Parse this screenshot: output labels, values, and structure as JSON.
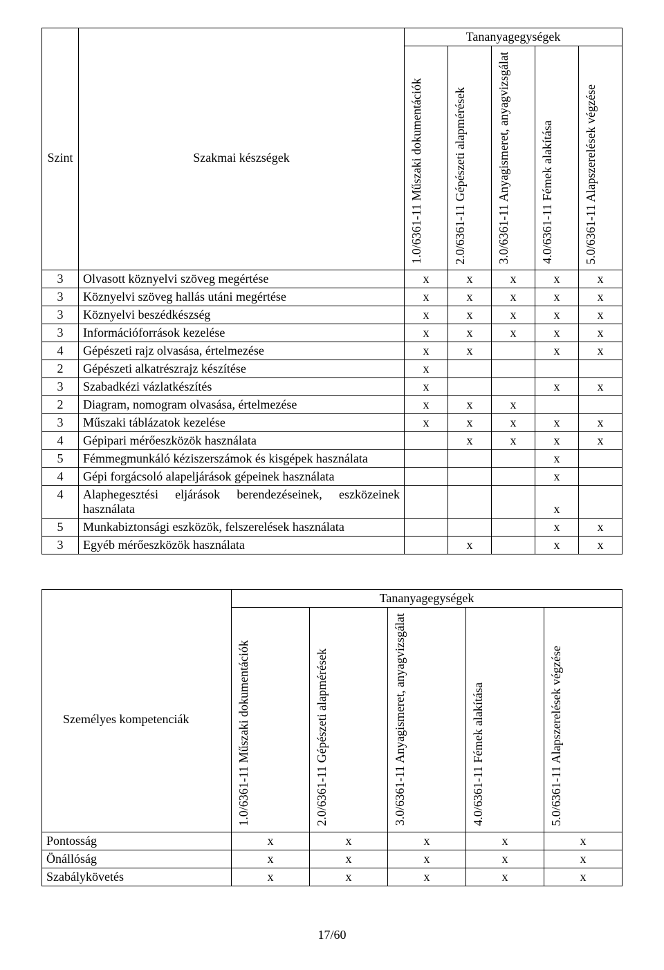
{
  "table1": {
    "group_header": "Tananyagegységek",
    "left_header_1": "Szint",
    "left_header_2": "Szakmai készségek",
    "cols": [
      "1.0/6361-11 Műszaki dokumentációk",
      "2.0/6361-11 Gépészeti alapmérések",
      "3.0/6361-11 Anyagismeret, anyagvizsgálat",
      "4.0/6361-11 Fémek alakítása",
      "5.0/6361-11 Alapszerelések végzése"
    ],
    "rows": [
      {
        "szint": "3",
        "desc": "Olvasott köznyelvi szöveg megértése",
        "m": [
          "x",
          "x",
          "x",
          "x",
          "x"
        ]
      },
      {
        "szint": "3",
        "desc": "Köznyelvi szöveg hallás utáni megértése",
        "m": [
          "x",
          "x",
          "x",
          "x",
          "x"
        ]
      },
      {
        "szint": "3",
        "desc": "Köznyelvi beszédkészség",
        "m": [
          "x",
          "x",
          "x",
          "x",
          "x"
        ]
      },
      {
        "szint": "3",
        "desc": "Információforrások kezelése",
        "m": [
          "x",
          "x",
          "x",
          "x",
          "x"
        ]
      },
      {
        "szint": "4",
        "desc": "Gépészeti rajz olvasása, értelmezése",
        "m": [
          "x",
          "x",
          "",
          "x",
          "x"
        ]
      },
      {
        "szint": "2",
        "desc": "Gépészeti alkatrészrajz készítése",
        "m": [
          "x",
          "",
          "",
          "",
          ""
        ]
      },
      {
        "szint": "3",
        "desc": "Szabadkézi vázlatkészítés",
        "m": [
          "x",
          "",
          "",
          "x",
          "x"
        ]
      },
      {
        "szint": "2",
        "desc": "Diagram, nomogram olvasása, értelmezése",
        "m": [
          "x",
          "x",
          "x",
          "",
          ""
        ]
      },
      {
        "szint": "3",
        "desc": "Műszaki táblázatok kezelése",
        "m": [
          "x",
          "x",
          "x",
          "x",
          "x"
        ]
      },
      {
        "szint": "4",
        "desc": "Gépipari mérőeszközök használata",
        "m": [
          "",
          "x",
          "x",
          "x",
          "x"
        ]
      },
      {
        "szint": "5",
        "desc": "Fémmegmunkáló kéziszerszámok és kisgépek használata",
        "m": [
          "",
          "",
          "",
          "x",
          ""
        ],
        "justify": true
      },
      {
        "szint": "4",
        "desc": "Gépi forgácsoló alapeljárások gépeinek használata",
        "m": [
          "",
          "",
          "",
          "x",
          ""
        ]
      },
      {
        "szint": "4",
        "desc": "Alaphegesztési eljárások berendezéseinek, eszközeinek használata",
        "m": [
          "",
          "",
          "",
          "x",
          ""
        ],
        "justify": true
      },
      {
        "szint": "5",
        "desc": "Munkabiztonsági eszközök, felszerelések használata",
        "m": [
          "",
          "",
          "",
          "x",
          "x"
        ]
      },
      {
        "szint": "3",
        "desc": "Egyéb mérőeszközök használata",
        "m": [
          "",
          "x",
          "",
          "x",
          "x"
        ]
      }
    ]
  },
  "table2": {
    "group_header": "Tananyagegységek",
    "left_header": "Személyes kompetenciák",
    "cols": [
      "1.0/6361-11 Műszaki dokumentációk",
      "2.0/6361-11 Gépészeti alapmérések",
      "3.0/6361-11 Anyagismeret, anyagvizsgálat",
      "4.0/6361-11 Fémek alakítása",
      "5.0/6361-11 Alapszerelések végzése"
    ],
    "rows": [
      {
        "desc": "Pontosság",
        "m": [
          "x",
          "x",
          "x",
          "x",
          "x"
        ]
      },
      {
        "desc": "Önállóság",
        "m": [
          "x",
          "x",
          "x",
          "x",
          "x"
        ]
      },
      {
        "desc": "Szabálykövetés",
        "m": [
          "x",
          "x",
          "x",
          "x",
          "x"
        ]
      }
    ]
  },
  "page_number": "17/60"
}
